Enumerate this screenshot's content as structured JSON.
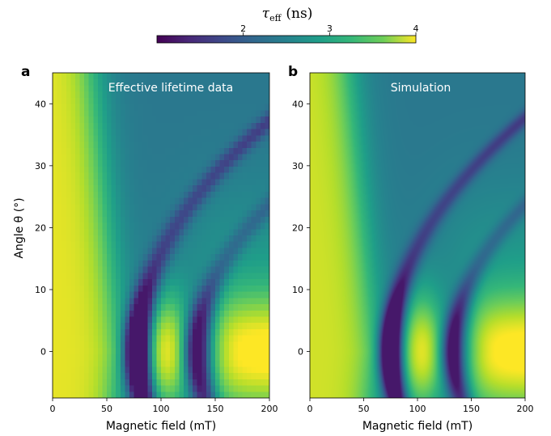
{
  "chart_data": {
    "type": "heatmap",
    "colorbar": {
      "label_symbol": "τ",
      "label_subscript": "eff",
      "label_unit": "(ns)",
      "range": [
        1.0,
        4.0
      ],
      "ticks": [
        "2",
        "3",
        "4"
      ],
      "tick_values": [
        2,
        3,
        4
      ],
      "colormap": "viridis",
      "orientation": "horizontal",
      "placement": "top"
    },
    "x_axis": {
      "label": "Magnetic field (mT)",
      "lim": [
        0,
        200
      ],
      "ticks": [
        "0",
        "50",
        "100",
        "150",
        "200"
      ],
      "tick_values": [
        0,
        50,
        100,
        150,
        200
      ]
    },
    "y_axis": {
      "label": "Angle θ (°)",
      "lim": [
        -7.5,
        45
      ],
      "ticks": [
        "0",
        "10",
        "20",
        "30",
        "40"
      ],
      "tick_values": [
        0,
        10,
        20,
        30,
        40
      ]
    },
    "grid": false,
    "panels": [
      {
        "letter": "a",
        "title": "Effective lifetime data",
        "pixelated": true,
        "resonances": [
          {
            "field_mT": 78,
            "angle_shift_mT_per_deg": 1.1,
            "depth_ns": 2.7,
            "width_mT": 8
          },
          {
            "field_mT": 133,
            "angle_shift_mT_per_deg": 1.5,
            "depth_ns": 1.8,
            "width_mT": 8
          }
        ],
        "high_field_tau_ns": 2.2,
        "low_field_tau_ns": 3.9
      },
      {
        "letter": "b",
        "title": "Simulation",
        "pixelated": false,
        "resonances": [
          {
            "field_mT": 75,
            "angle_shift_mT_per_deg": 1.1,
            "depth_ns": 2.8,
            "width_mT": 7
          },
          {
            "field_mT": 133,
            "angle_shift_mT_per_deg": 1.5,
            "depth_ns": 1.8,
            "width_mT": 7
          }
        ],
        "high_field_tau_ns": 2.2,
        "low_field_tau_ns": 3.8
      }
    ]
  }
}
